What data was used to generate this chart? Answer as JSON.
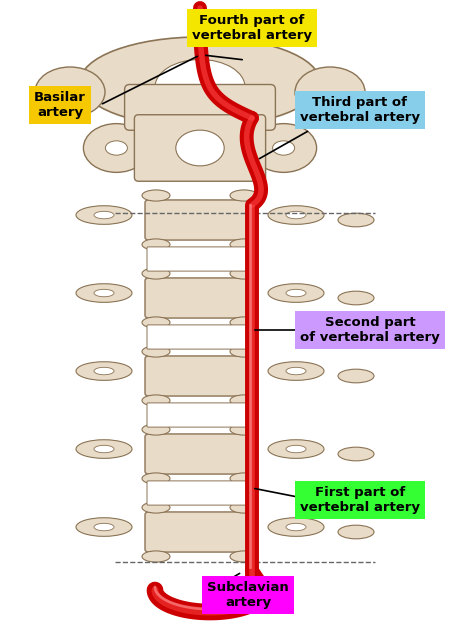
{
  "background_color": "#ffffff",
  "spine_color": "#e8dcc8",
  "spine_outline": "#8b7355",
  "artery_red": "#cc0000",
  "artery_highlight": "#ff4444",
  "labels": {
    "basilar": "Basilar\nartery",
    "fourth": "Fourth part of\nvertebral artery",
    "third": "Third part of\nvertebral artery",
    "second": "Second part\nof vertebral artery",
    "first": "First part of\nvertebral artery",
    "subclavian": "Subclavian\nartery"
  },
  "label_colors": {
    "basilar": "#f5c800",
    "fourth": "#f5e600",
    "third": "#87ceeb",
    "second": "#cc99ff",
    "first": "#33ff33",
    "subclavian": "#ff00ff"
  },
  "figsize": [
    4.74,
    6.29
  ],
  "dpi": 100
}
